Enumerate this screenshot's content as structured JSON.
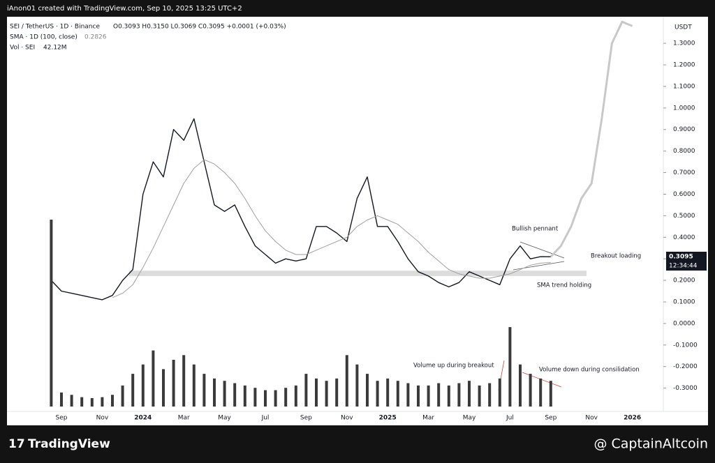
{
  "chart_data": {
    "type": "line",
    "attribution": "iAnon01 created with TradingView.com, Sep 10, 2025 13:25 UTC+2",
    "title": "SEI / TetherUS · 1D · Binance",
    "ohlc": "O0.3093 H0.3150 L0.3069 C0.3095 +0.0001 (+0.03%)",
    "sma_label": "SMA · 1D (100, close)",
    "sma_value_text": "0.2826",
    "vol_label": "Vol · SEI",
    "vol_value_text": "42.12M",
    "currency": "USDT",
    "price_tag": "0.3095",
    "countdown": "12:34:44",
    "brand": "TradingView",
    "watermark": "@ CaptainAltcoin",
    "annotations": [
      "Bullish pennant",
      "Breakout loading",
      "SMA trend holding",
      "Volume up during breakout",
      "Volume down during consilidation"
    ],
    "categories": [
      null,
      "Sep",
      null,
      null,
      null,
      "Nov",
      null,
      null,
      null,
      "2024",
      null,
      null,
      null,
      "Mar",
      null,
      null,
      null,
      "May",
      null,
      null,
      null,
      "Jul",
      null,
      null,
      null,
      "Sep",
      null,
      null,
      null,
      "Nov",
      null,
      null,
      null,
      "2025",
      null,
      null,
      null,
      "Mar",
      null,
      null,
      null,
      "May",
      null,
      null,
      null,
      "Jul",
      null,
      null,
      null,
      "Sep",
      null,
      null,
      null,
      "Nov",
      null,
      null,
      null,
      "2026"
    ],
    "support_zone": [
      0.22,
      0.245
    ],
    "series": [
      {
        "color": "#131722",
        "width": 1.4,
        "values": [
          0.2,
          0.15,
          0.14,
          0.13,
          0.12,
          0.11,
          0.13,
          0.2,
          0.25,
          0.6,
          0.75,
          0.68,
          0.9,
          0.85,
          0.95,
          0.75,
          0.55,
          0.52,
          0.55,
          0.45,
          0.36,
          0.32,
          0.28,
          0.3,
          0.29,
          0.3,
          0.45,
          0.45,
          0.42,
          0.38,
          0.58,
          0.68,
          0.45,
          0.45,
          0.38,
          0.3,
          0.24,
          0.22,
          0.19,
          0.17,
          0.19,
          0.24,
          0.22,
          0.2,
          0.18,
          0.3,
          0.36,
          0.3,
          0.31,
          0.3095,
          null,
          null,
          null,
          null,
          null,
          null,
          null,
          null
        ]
      },
      {
        "color": "#9e9e9e",
        "width": 1,
        "values": [
          null,
          null,
          null,
          null,
          null,
          null,
          0.12,
          0.14,
          0.18,
          0.26,
          0.35,
          0.45,
          0.55,
          0.65,
          0.72,
          0.76,
          0.74,
          0.7,
          0.65,
          0.58,
          0.5,
          0.43,
          0.38,
          0.34,
          0.32,
          0.32,
          0.34,
          0.36,
          0.38,
          0.4,
          0.45,
          0.48,
          0.5,
          0.48,
          0.46,
          0.42,
          0.38,
          0.33,
          0.29,
          0.25,
          0.23,
          0.22,
          0.21,
          0.21,
          0.22,
          0.23,
          0.25,
          0.27,
          0.28,
          0.2826,
          null,
          null,
          null,
          null,
          null,
          null,
          null,
          null
        ]
      },
      {
        "color": "#c8c8c8",
        "width": 3,
        "values": [
          null,
          null,
          null,
          null,
          null,
          null,
          null,
          null,
          null,
          null,
          null,
          null,
          null,
          null,
          null,
          null,
          null,
          null,
          null,
          null,
          null,
          null,
          null,
          null,
          null,
          null,
          null,
          null,
          null,
          null,
          null,
          null,
          null,
          null,
          null,
          null,
          null,
          null,
          null,
          null,
          null,
          null,
          null,
          null,
          null,
          null,
          null,
          null,
          null,
          0.31,
          0.36,
          0.45,
          0.58,
          0.65,
          0.95,
          1.3,
          1.4,
          1.38
        ]
      },
      {
        "type": "bar",
        "axis": "y2",
        "color": "#3a3a3a",
        "values": [
          400,
          30,
          25,
          20,
          18,
          20,
          25,
          45,
          70,
          90,
          120,
          80,
          100,
          110,
          90,
          70,
          60,
          55,
          50,
          45,
          40,
          35,
          35,
          40,
          45,
          70,
          60,
          55,
          60,
          110,
          90,
          70,
          55,
          60,
          55,
          50,
          45,
          45,
          50,
          45,
          50,
          55,
          45,
          50,
          60,
          170,
          90,
          70,
          60,
          55,
          null,
          null,
          null,
          null,
          null,
          null,
          null,
          null
        ]
      }
    ],
    "ylim": [
      -0.408,
      1.42
    ],
    "yticks": [
      {
        "value": -0.3,
        "label": "-0.3000"
      },
      {
        "value": -0.2,
        "label": "-0.2000"
      },
      {
        "value": -0.1,
        "label": "-0.1000"
      },
      {
        "value": 0,
        "label": "0.0000"
      },
      {
        "value": 0.1,
        "label": "0.1000"
      },
      {
        "value": 0.2,
        "label": "0.2000"
      },
      {
        "value": 0.3,
        "label": "0.3000"
      },
      {
        "value": 0.4,
        "label": "0.4000"
      },
      {
        "value": 0.5,
        "label": "0.5000"
      },
      {
        "value": 0.6,
        "label": "0.6000"
      },
      {
        "value": 0.7,
        "label": "0.7000"
      },
      {
        "value": 0.8,
        "label": "0.8000"
      },
      {
        "value": 0.9,
        "label": "0.9000"
      },
      {
        "value": 1.0,
        "label": "1.0000"
      },
      {
        "value": 1.1,
        "label": "1.1000"
      },
      {
        "value": 1.2,
        "label": "1.2000"
      },
      {
        "value": 1.3,
        "label": "1.3000"
      }
    ],
    "y2lim": [
      0,
      400
    ]
  }
}
